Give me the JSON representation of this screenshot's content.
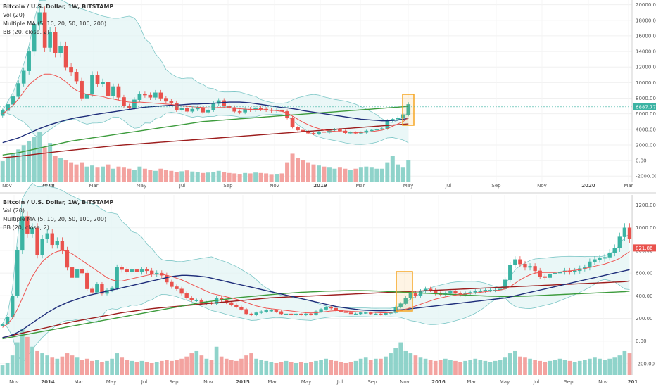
{
  "chart_data": [
    {
      "type": "candlestick",
      "legend": [
        "Bitcoin / U.S. Dollar, 1W, BITSTAMP",
        "Vol (20)",
        "Multiple MA (5, 10, 20, 50, 100, 200)",
        "BB (20, close, 2)"
      ],
      "x_ticks": [
        "Nov",
        "2018",
        "Mar",
        "May",
        "Jul",
        "Sep",
        "Nov",
        "2019",
        "Mar",
        "May",
        "Jul",
        "Sep",
        "Nov",
        "2020",
        "Mar"
      ],
      "y_ticks": [
        "20000.00",
        "18000.00",
        "16000.00",
        "14000.00",
        "12000.00",
        "10000.00",
        "8000.00",
        "6000.00",
        "4000.00",
        "2000.00",
        "0.00",
        "-2000.00"
      ],
      "ylim": [
        -2700,
        20600
      ],
      "last_price": "6887.77",
      "colors": {
        "up": "#3bb3a3",
        "down": "#e9524d",
        "ma_red": "#ef5350",
        "ma_blue": "#1e2d7a",
        "ma_green": "#3c9b3c",
        "ma_darkred": "#9c1c1c",
        "bb": "#7cc6c6",
        "highlight": "#f5a623"
      },
      "close": [
        6400,
        7200,
        8200,
        9900,
        11500,
        14000,
        17500,
        19000,
        14500,
        16500,
        13800,
        14700,
        12000,
        11300,
        10200,
        8000,
        8500,
        11000,
        9800,
        10100,
        8300,
        9500,
        8100,
        7000,
        6800,
        7800,
        8500,
        8400,
        8100,
        8700,
        8000,
        7600,
        7400,
        6500,
        6700,
        6300,
        6600,
        6800,
        6200,
        6500,
        7300,
        7700,
        7000,
        6800,
        6300,
        6200,
        6600,
        6500,
        6700,
        6600,
        6500,
        6400,
        6500,
        6300,
        5500,
        4300,
        3900,
        3750,
        3500,
        3400,
        3700,
        3600,
        3900,
        4000,
        3800,
        3550,
        3600,
        3500,
        3600,
        3800,
        3900,
        4000,
        4100,
        5100,
        5300,
        5500,
        5900,
        7200
      ],
      "volume": [
        950,
        1100,
        1300,
        1500,
        1700,
        1900,
        2100,
        2300,
        1600,
        1800,
        1200,
        1100,
        1000,
        900,
        800,
        900,
        700,
        750,
        650,
        700,
        800,
        600,
        700,
        650,
        600,
        550,
        700,
        600,
        550,
        500,
        600,
        550,
        500,
        450,
        480,
        520,
        470,
        430,
        400,
        420,
        460,
        500,
        440,
        400,
        380,
        360,
        400,
        380,
        420,
        400,
        380,
        350,
        360,
        380,
        900,
        1300,
        1100,
        1000,
        900,
        800,
        750,
        700,
        650,
        600,
        650,
        600,
        550,
        600,
        650,
        700,
        650,
        600,
        600,
        900,
        1200,
        800,
        650,
        1000
      ],
      "ma_red": [
        6000,
        6500,
        7100,
        7900,
        8800,
        9700,
        10300,
        10800,
        11100,
        11100,
        10900,
        10600,
        10100,
        9500,
        9000,
        8700,
        8500,
        8400,
        8300,
        8200,
        8000,
        7900,
        7750,
        7600,
        7500,
        7450,
        7500,
        7450,
        7400,
        7350,
        7300,
        7250,
        7200,
        7100,
        7000,
        6950,
        6900,
        6850,
        6800,
        6750,
        6750,
        6800,
        6800,
        6750,
        6700,
        6650,
        6600,
        6550,
        6550,
        6550,
        6500,
        6450,
        6400,
        6300,
        6100,
        5700,
        5300,
        4900,
        4600,
        4300,
        4100,
        3900,
        3800,
        3750,
        3700,
        3700,
        3650,
        3600,
        3600,
        3650,
        3700,
        3800,
        3900,
        4100,
        4400,
        4700,
        5000,
        5500
      ],
      "ma_blue": [
        2300,
        2500,
        2700,
        2900,
        3200,
        3500,
        3800,
        4100,
        4350,
        4600,
        4800,
        5000,
        5200,
        5350,
        5500,
        5600,
        5700,
        5850,
        5950,
        6050,
        6150,
        6250,
        6350,
        6450,
        6550,
        6650,
        6750,
        6850,
        6900,
        6950,
        7000,
        7050,
        7100,
        7100,
        7150,
        7200,
        7250,
        7250,
        7300,
        7300,
        7350,
        7400,
        7450,
        7500,
        7500,
        7500,
        7450,
        7400,
        7300,
        7200,
        7100,
        7000,
        6900,
        6800,
        6750,
        6650,
        6550,
        6400,
        6300,
        6200,
        6100,
        6000,
        5900,
        5800,
        5700,
        5600,
        5500,
        5400,
        5300,
        5250,
        5200,
        5150,
        5100,
        5100,
        5150,
        5200,
        5300,
        5400
      ],
      "ma_green": [
        700,
        800,
        900,
        1000,
        1150,
        1300,
        1450,
        1600,
        1750,
        1900,
        2050,
        2200,
        2350,
        2500,
        2600,
        2700,
        2800,
        2900,
        3000,
        3100,
        3200,
        3300,
        3400,
        3500,
        3600,
        3700,
        3800,
        3900,
        4000,
        4100,
        4200,
        4300,
        4400,
        4500,
        4600,
        4700,
        4800,
        4900,
        5000,
        5050,
        5100,
        5150,
        5200,
        5250,
        5300,
        5350,
        5400,
        5450,
        5500,
        5550,
        5600,
        5650,
        5700,
        5750,
        5800,
        5850,
        5900,
        5950,
        6000,
        6050,
        6100,
        6150,
        6200,
        6250,
        6300,
        6350,
        6400,
        6450,
        6500,
        6550,
        6600,
        6650,
        6700,
        6750,
        6800,
        6850,
        6900,
        6950
      ],
      "ma_darkred": [
        350,
        420,
        480,
        550,
        620,
        700,
        780,
        860,
        940,
        1020,
        1100,
        1180,
        1250,
        1320,
        1390,
        1460,
        1530,
        1600,
        1670,
        1740,
        1810,
        1880,
        1950,
        2000,
        2050,
        2100,
        2150,
        2200,
        2250,
        2300,
        2350,
        2400,
        2450,
        2500,
        2550,
        2600,
        2650,
        2700,
        2750,
        2800,
        2850,
        2900,
        2950,
        3000,
        3050,
        3100,
        3150,
        3200,
        3250,
        3300,
        3350,
        3400,
        3450,
        3500,
        3550,
        3600,
        3650,
        3700,
        3750,
        3800,
        3850,
        3900,
        3950,
        4000,
        4050,
        4100,
        4150,
        4200,
        4250,
        4300,
        4350,
        4400,
        4450,
        4500,
        4550,
        4600,
        4650,
        4700
      ]
    },
    {
      "type": "candlestick",
      "legend": [
        "Bitcoin / U.S. Dollar, 1W, BITSTAMP",
        "Vol (20)",
        "Multiple MA (5, 10, 20, 50, 100, 200)",
        "BB (20, close, 2)"
      ],
      "x_ticks": [
        "Nov",
        "2014",
        "Mar",
        "May",
        "Jul",
        "Sep",
        "Nov",
        "2015",
        "Mar",
        "May",
        "Jul",
        "Sep",
        "Nov",
        "2016",
        "Mar",
        "May",
        "Jul",
        "Sep",
        "Nov",
        "201"
      ],
      "y_ticks": [
        "1200.00",
        "1000.00",
        "800.00",
        "600.00",
        "400.00",
        "200.00",
        "0.00",
        "-200.00"
      ],
      "ylim": [
        -300,
        1290
      ],
      "last_price": "821.86",
      "close": [
        150,
        210,
        400,
        800,
        1100,
        950,
        1000,
        760,
        900,
        950,
        850,
        880,
        800,
        650,
        560,
        630,
        600,
        460,
        430,
        500,
        420,
        450,
        470,
        650,
        630,
        610,
        630,
        610,
        630,
        620,
        590,
        600,
        580,
        520,
        480,
        460,
        420,
        380,
        360,
        360,
        330,
        340,
        330,
        380,
        360,
        340,
        320,
        300,
        280,
        240,
        230,
        250,
        260,
        270,
        270,
        260,
        240,
        240,
        230,
        240,
        230,
        240,
        235,
        260,
        280,
        300,
        290,
        270,
        260,
        250,
        240,
        240,
        250,
        250,
        240,
        240,
        235,
        245,
        250,
        300,
        330,
        380,
        420,
        400,
        440,
        460,
        450,
        420,
        410,
        420,
        440,
        420,
        410,
        420,
        430,
        440,
        440,
        450,
        450,
        450,
        460,
        540,
        670,
        720,
        680,
        650,
        660,
        620,
        570,
        560,
        590,
        600,
        610,
        620,
        610,
        620,
        640,
        650,
        700,
        720,
        730,
        740,
        780,
        820,
        920,
        1000,
        900
      ],
      "volume": [
        90,
        110,
        180,
        300,
        420,
        350,
        260,
        220,
        200,
        180,
        160,
        150,
        170,
        200,
        180,
        160,
        140,
        150,
        130,
        140,
        120,
        130,
        150,
        200,
        160,
        140,
        130,
        120,
        130,
        120,
        110,
        120,
        130,
        140,
        130,
        140,
        150,
        170,
        200,
        220,
        180,
        150,
        140,
        260,
        170,
        150,
        140,
        130,
        150,
        180,
        200,
        150,
        140,
        130,
        120,
        110,
        120,
        130,
        120,
        110,
        120,
        110,
        120,
        130,
        140,
        150,
        140,
        130,
        120,
        110,
        120,
        130,
        150,
        160,
        140,
        150,
        150,
        170,
        200,
        250,
        300,
        220,
        200,
        180,
        160,
        150,
        140,
        130,
        140,
        150,
        140,
        130,
        120,
        130,
        140,
        150,
        140,
        130,
        120,
        130,
        140,
        160,
        200,
        220,
        170,
        160,
        150,
        140,
        130,
        120,
        130,
        140,
        150,
        140,
        130,
        120,
        130,
        140,
        150,
        160,
        150,
        140,
        150,
        160,
        180,
        220,
        200
      ],
      "ma_red": [
        120,
        150,
        200,
        280,
        380,
        480,
        570,
        640,
        700,
        740,
        770,
        790,
        800,
        790,
        770,
        740,
        710,
        680,
        650,
        620,
        590,
        560,
        540,
        530,
        530,
        540,
        550,
        560,
        570,
        580,
        590,
        590,
        590,
        580,
        570,
        555,
        540,
        520,
        500,
        480,
        460,
        440,
        420,
        410,
        400,
        390,
        380,
        370,
        355,
        340,
        325,
        310,
        300,
        290,
        285,
        280,
        275,
        270,
        265,
        260,
        255,
        250,
        248,
        250,
        255,
        260,
        265,
        268,
        268,
        265,
        262,
        260,
        258,
        256,
        254,
        252,
        250,
        250,
        252,
        258,
        268,
        280,
        295,
        310,
        325,
        340,
        355,
        370,
        380,
        390,
        398,
        405,
        410,
        415,
        420,
        425,
        430,
        435,
        440,
        445,
        450,
        460,
        480,
        510,
        540,
        565,
        585,
        600,
        605,
        605,
        605,
        605,
        610,
        615,
        620,
        625,
        630,
        640,
        650,
        660,
        670,
        680,
        695,
        710,
        730,
        760,
        790
      ],
      "ma_blue": [
        30,
        40,
        55,
        75,
        100,
        130,
        160,
        190,
        220,
        250,
        275,
        300,
        320,
        340,
        355,
        370,
        385,
        400,
        410,
        420,
        430,
        440,
        450,
        460,
        470,
        480,
        490,
        500,
        510,
        520,
        530,
        540,
        550,
        560,
        570,
        575,
        580,
        580,
        578,
        575,
        570,
        565,
        555,
        545,
        535,
        525,
        515,
        505,
        495,
        485,
        475,
        465,
        455,
        445,
        435,
        425,
        415,
        405,
        395,
        385,
        375,
        365,
        355,
        345,
        335,
        325,
        315,
        305,
        298,
        292,
        286,
        280,
        275,
        272,
        270,
        268,
        267,
        268,
        270,
        273,
        276,
        280,
        285,
        290,
        295,
        300,
        305,
        310,
        315,
        320,
        325,
        330,
        335,
        340,
        345,
        350,
        355,
        360,
        365,
        370,
        375,
        380,
        390,
        400,
        410,
        420,
        430,
        440,
        450,
        460,
        470,
        480,
        490,
        500,
        510,
        520,
        530,
        540,
        550,
        560,
        570,
        580,
        590,
        600,
        610,
        620,
        630
      ],
      "ma_green": [
        20,
        28,
        36,
        44,
        52,
        60,
        68,
        76,
        84,
        92,
        100,
        108,
        116,
        124,
        132,
        140,
        148,
        156,
        164,
        172,
        180,
        188,
        196,
        204,
        212,
        220,
        228,
        236,
        244,
        252,
        260,
        268,
        276,
        284,
        292,
        300,
        308,
        316,
        324,
        332,
        340,
        346,
        352,
        358,
        364,
        370,
        376,
        382,
        386,
        390,
        394,
        398,
        402,
        406,
        410,
        414,
        418,
        421,
        424,
        427,
        430,
        432,
        434,
        436,
        438,
        440,
        441,
        442,
        443,
        444,
        445,
        445,
        445,
        444,
        443,
        442,
        440,
        438,
        436,
        434,
        432,
        430,
        428,
        426,
        424,
        422,
        420,
        418,
        416,
        414,
        412,
        410,
        408,
        406,
        404,
        402,
        400,
        398,
        396,
        395,
        394,
        393,
        393,
        394,
        395,
        396,
        398,
        400,
        402,
        404,
        406,
        408,
        410,
        412,
        414,
        416,
        418,
        420,
        422,
        424,
        426,
        428,
        430,
        432,
        434,
        436,
        440
      ],
      "ma_darkred": [
        30,
        40,
        50,
        60,
        70,
        80,
        90,
        100,
        110,
        120,
        130,
        140,
        150,
        160,
        170,
        178,
        186,
        194,
        202,
        210,
        218,
        226,
        234,
        242,
        250,
        256,
        262,
        268,
        274,
        280,
        286,
        290,
        294,
        298,
        302,
        306,
        310,
        314,
        318,
        322,
        326,
        330,
        334,
        338,
        342,
        346,
        350,
        354,
        358,
        362,
        366,
        370,
        374,
        378,
        382,
        384,
        386,
        388,
        390,
        392,
        394,
        396,
        398,
        400,
        402,
        404,
        406,
        408,
        410,
        412,
        414,
        416,
        418,
        420,
        422,
        424,
        426,
        428,
        430,
        432,
        434,
        436,
        438,
        440,
        442,
        444,
        446,
        448,
        450,
        452,
        454,
        456,
        458,
        460,
        462,
        464,
        466,
        468,
        470,
        472,
        474,
        476,
        478,
        480,
        482,
        484,
        486,
        488,
        490,
        492,
        494,
        496,
        498,
        500,
        502,
        504,
        506,
        508,
        510,
        512,
        514,
        516,
        518,
        520,
        522,
        524,
        530
      ]
    }
  ]
}
